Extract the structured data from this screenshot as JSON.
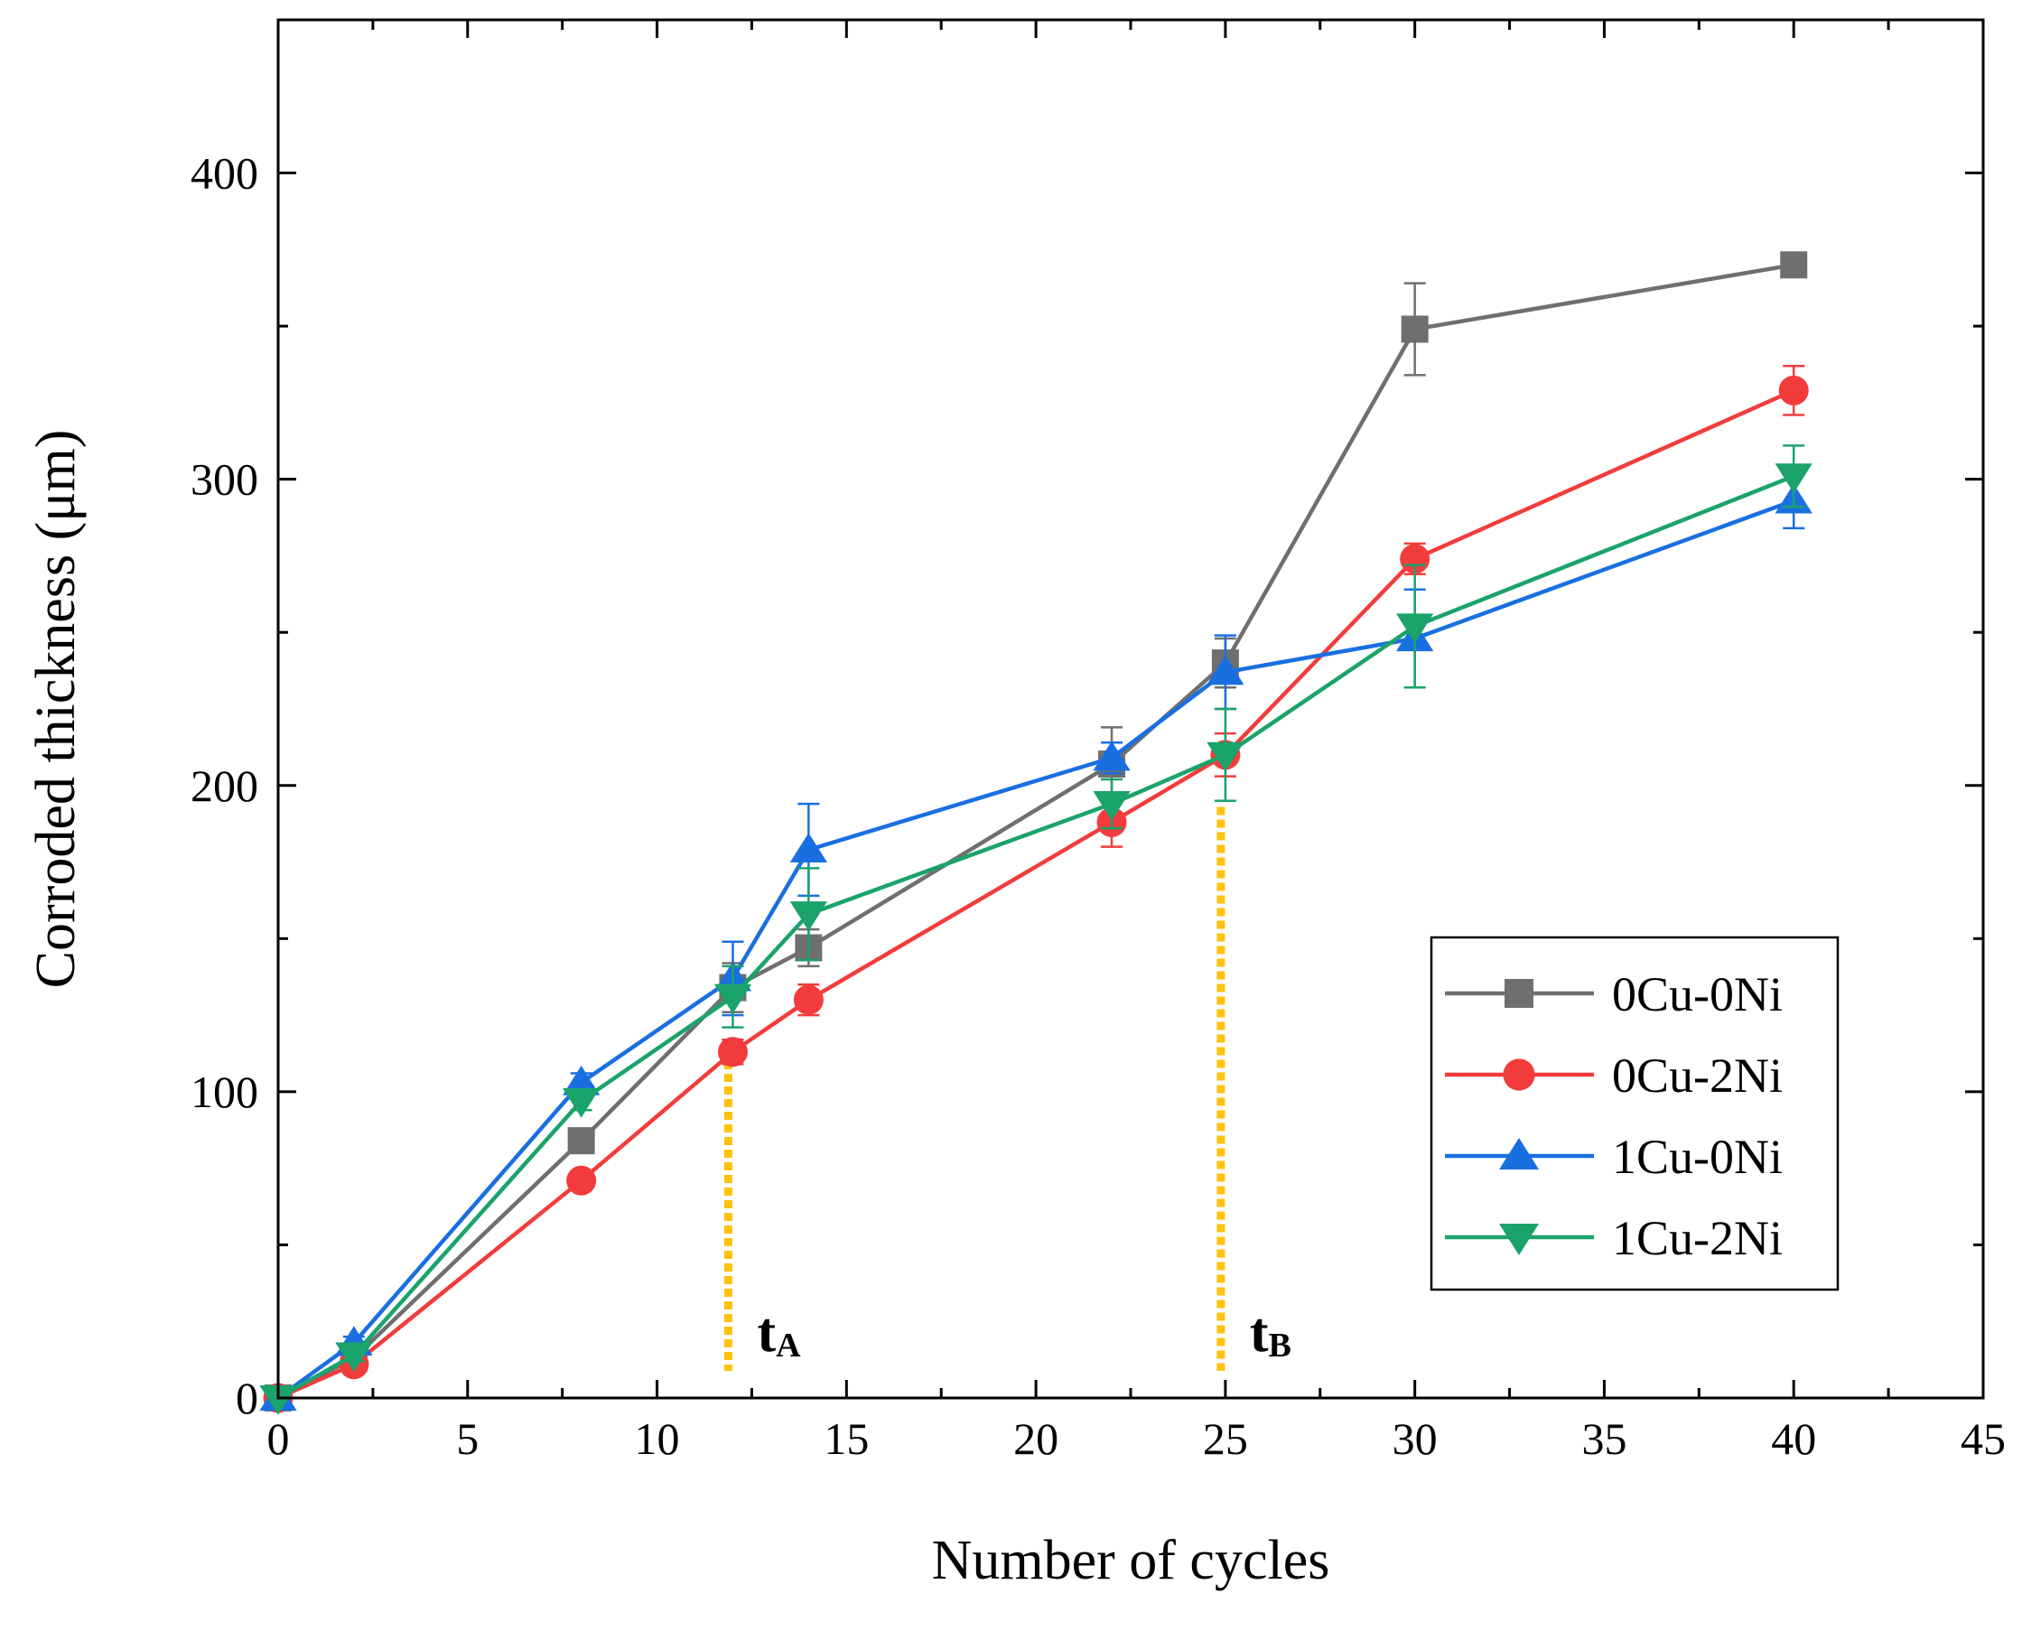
{
  "chart_data": {
    "type": "line",
    "title": "",
    "xlabel": "Number of cycles",
    "ylabel": "Corroded thickness  (μm)",
    "xlim": [
      0,
      45
    ],
    "ylim": [
      0,
      450
    ],
    "xticks": [
      0,
      5,
      10,
      15,
      20,
      25,
      30,
      35,
      40,
      45
    ],
    "yticks": [
      0,
      100,
      200,
      300,
      400
    ],
    "x": [
      0,
      2,
      8,
      12,
      14,
      22,
      25,
      30,
      40
    ],
    "grid": false,
    "legend_position": "bottom-right",
    "series": [
      {
        "name": "0Cu-0Ni",
        "color": "#6f6f6f",
        "marker": "square",
        "values": [
          0,
          13,
          84,
          134,
          147,
          207,
          240,
          349,
          370
        ],
        "errors": [
          0,
          2,
          3,
          8,
          6,
          12,
          8,
          15,
          0
        ]
      },
      {
        "name": "0Cu-2Ni",
        "color": "#f23c3c",
        "marker": "circle",
        "values": [
          0,
          11,
          71,
          113,
          130,
          188,
          210,
          274,
          329
        ],
        "errors": [
          0,
          2,
          3,
          4,
          5,
          8,
          7,
          5,
          8
        ]
      },
      {
        "name": "1Cu-0Ni",
        "color": "#1a6fe0",
        "marker": "triangle-up",
        "values": [
          0,
          18,
          103,
          137,
          179,
          209,
          237,
          248,
          293
        ],
        "errors": [
          0,
          2,
          3,
          12,
          15,
          5,
          12,
          16,
          9
        ]
      },
      {
        "name": "1Cu-2Ni",
        "color": "#1aa36a",
        "marker": "triangle-down",
        "values": [
          0,
          14,
          97,
          131,
          158,
          194,
          210,
          252,
          301
        ],
        "errors": [
          0,
          2,
          3,
          10,
          15,
          8,
          15,
          20,
          10
        ]
      }
    ],
    "annotations": [
      {
        "label": "t",
        "subscript": "A",
        "x": 12,
        "y_top": 110,
        "color": "#ffc20e"
      },
      {
        "label": "t",
        "subscript": "B",
        "x": 25,
        "y_top": 193,
        "color": "#ffc20e"
      }
    ]
  }
}
